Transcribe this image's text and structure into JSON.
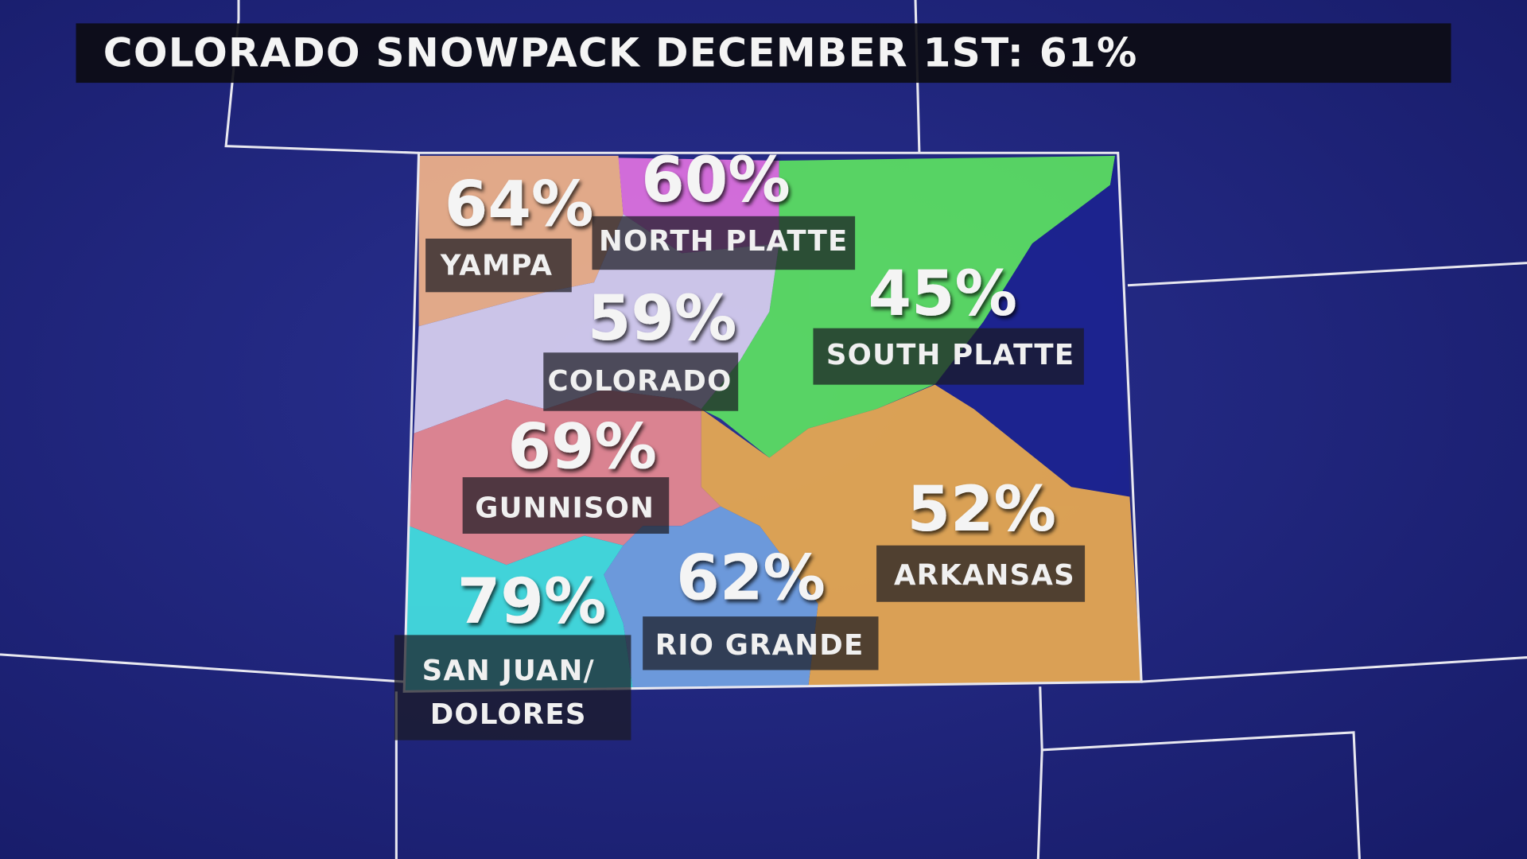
{
  "title": "COLORADO SNOWPACK DECEMBER 1ST:  61%",
  "basins": [
    {
      "name": "YAMPA",
      "value": "64%"
    },
    {
      "name": "NORTH PLATTE",
      "value": "60%"
    },
    {
      "name": "COLORADO",
      "value": "59%"
    },
    {
      "name": "SOUTH PLATTE",
      "value": "45%"
    },
    {
      "name": "GUNNISON",
      "value": "69%"
    },
    {
      "name_lines": [
        "SAN JUAN/",
        "DOLORES"
      ],
      "value": "79%"
    },
    {
      "name": "RIO GRANDE",
      "value": "62%"
    },
    {
      "name": "ARKANSAS",
      "value": "52%"
    }
  ]
}
